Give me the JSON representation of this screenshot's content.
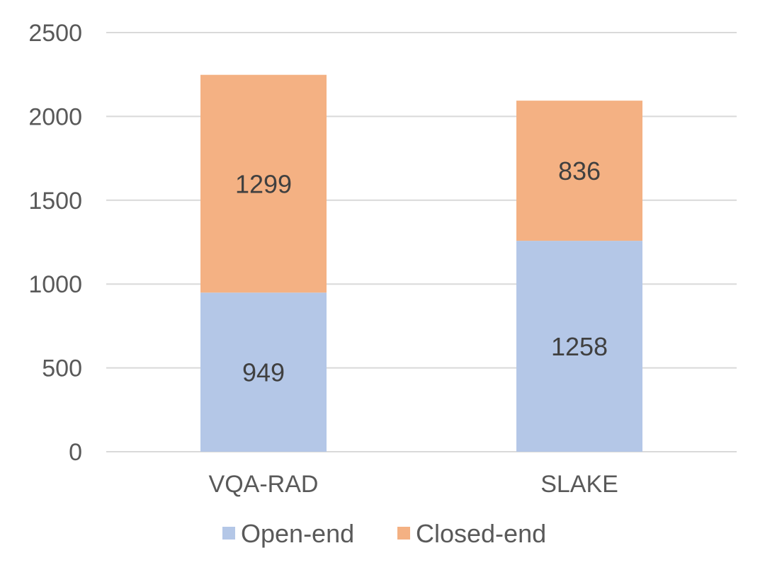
{
  "chart_data": {
    "type": "bar",
    "stacked": true,
    "categories": [
      "VQA-RAD",
      "SLAKE"
    ],
    "series": [
      {
        "name": "Open-end",
        "values": [
          949,
          1258
        ],
        "color": "#B4C7E7"
      },
      {
        "name": "Closed-end",
        "values": [
          1299,
          836
        ],
        "color": "#F4B183"
      }
    ],
    "title": "",
    "xlabel": "",
    "ylabel": "",
    "ylim": [
      0,
      2500
    ],
    "yticks": [
      0,
      500,
      1000,
      1500,
      2000,
      2500
    ],
    "grid": true,
    "legend_position": "bottom",
    "gridline_color": "#D9D9D9"
  }
}
